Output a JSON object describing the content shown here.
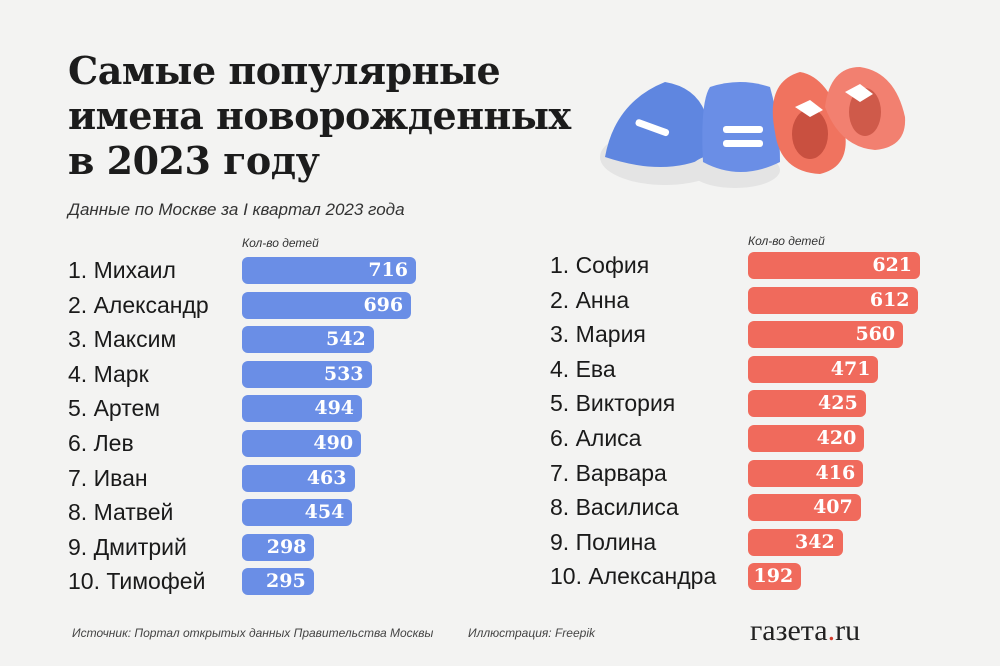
{
  "title_lines": [
    "Самые популярные",
    "имена новорожденных",
    "в 2023 году"
  ],
  "subtitle": "Данные по Москве за I квартал 2023 года",
  "chart_data": [
    {
      "type": "bar",
      "orientation": "horizontal",
      "color": "#6a8ee6",
      "xlabel": "Кол-во детей",
      "categories": [
        "1. Михаил",
        "2. Александр",
        "3. Максим",
        "4. Марк",
        "5. Артем",
        "6. Лев",
        "7. Иван",
        "8. Матвей",
        "9. Дмитрий",
        "10. Тимофей"
      ],
      "values": [
        716,
        696,
        542,
        533,
        494,
        490,
        463,
        454,
        298,
        295
      ]
    },
    {
      "type": "bar",
      "orientation": "horizontal",
      "color": "#f06a5c",
      "xlabel": "Кол-во детей",
      "categories": [
        "1. София",
        "2. Анна",
        "3. Мария",
        "4. Ева",
        "5. Виктория",
        "6. Алиса",
        "7. Варвара",
        "8. Василиса",
        "9. Полина",
        "10. Александра"
      ],
      "values": [
        621,
        612,
        560,
        471,
        425,
        420,
        416,
        407,
        342,
        192
      ]
    }
  ],
  "footer": {
    "source": "Источник: Портал открытых данных Правительства Москвы",
    "illustration": "Иллюстрация:  Freepik",
    "logo": "газета.ru"
  },
  "illustration_icon": "baby-shoes-icon"
}
